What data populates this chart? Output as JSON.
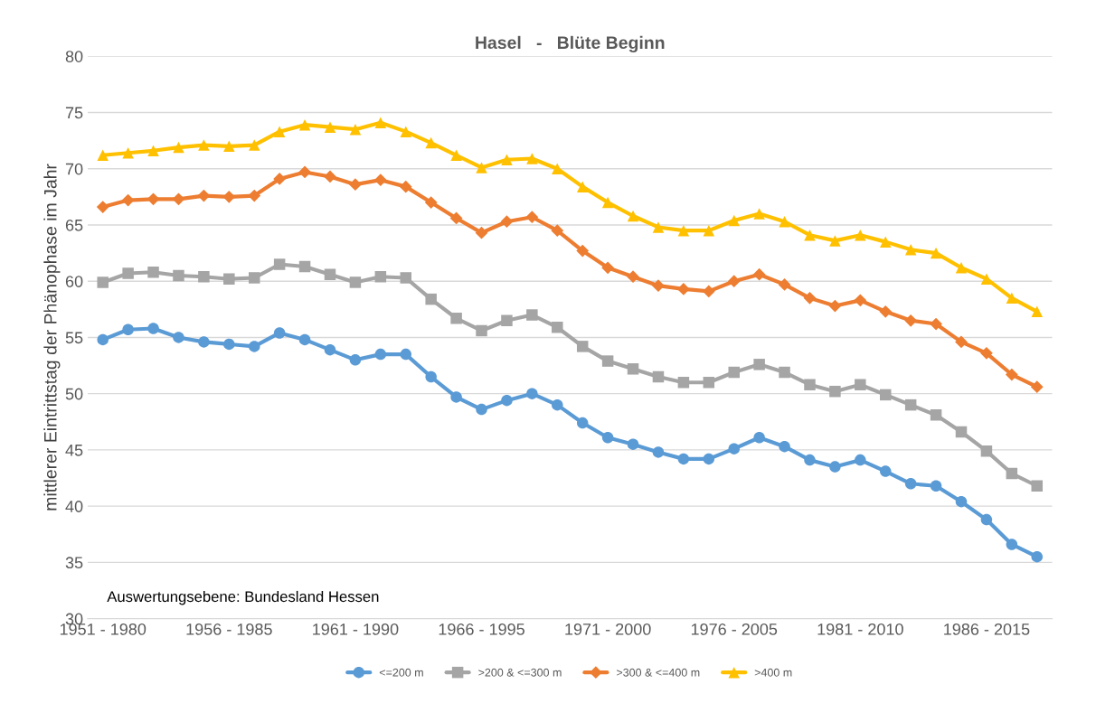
{
  "chart_data": {
    "type": "line",
    "title": "Hasel   -   Blüte Beginn",
    "ylabel": "mittlerer Eintrittstag der Phänophase im Jahr",
    "categories": [
      "1951 - 1980",
      null,
      null,
      null,
      null,
      "1956 - 1985",
      null,
      null,
      null,
      null,
      "1961 - 1990",
      null,
      null,
      null,
      null,
      "1966 - 1995",
      null,
      null,
      null,
      null,
      "1971 - 2000",
      null,
      null,
      null,
      null,
      "1976 - 2005",
      null,
      null,
      null,
      null,
      "1981 - 2010",
      null,
      null,
      null,
      null,
      "1986 - 2015",
      null,
      null
    ],
    "series": [
      {
        "name": "<=200 m",
        "color": "#5b9bd5",
        "marker": "circle",
        "values": [
          54.8,
          55.7,
          55.8,
          55.0,
          54.6,
          54.4,
          54.2,
          55.4,
          54.8,
          53.9,
          53.0,
          53.5,
          53.5,
          51.5,
          49.7,
          48.6,
          49.4,
          50.0,
          49.0,
          47.4,
          46.1,
          45.5,
          44.8,
          44.2,
          44.2,
          45.1,
          46.1,
          45.3,
          44.1,
          43.5,
          44.1,
          43.1,
          42.0,
          41.8,
          40.4,
          38.8,
          36.6,
          35.5
        ]
      },
      {
        "name": ">200 & <=300 m",
        "color": "#a5a5a5",
        "marker": "square",
        "values": [
          59.9,
          60.7,
          60.8,
          60.5,
          60.4,
          60.2,
          60.3,
          61.5,
          61.3,
          60.6,
          59.9,
          60.4,
          60.3,
          58.4,
          56.7,
          55.6,
          56.5,
          57.0,
          55.9,
          54.2,
          52.9,
          52.2,
          51.5,
          51.0,
          51.0,
          51.9,
          52.6,
          51.9,
          50.8,
          50.2,
          50.8,
          49.9,
          49.0,
          48.1,
          46.6,
          44.9,
          42.9,
          41.8
        ]
      },
      {
        "name": ">300 & <=400 m",
        "color": "#ed7d31",
        "marker": "diamond",
        "values": [
          66.6,
          67.2,
          67.3,
          67.3,
          67.6,
          67.5,
          67.6,
          69.1,
          69.7,
          69.3,
          68.6,
          69.0,
          68.4,
          67.0,
          65.6,
          64.3,
          65.3,
          65.7,
          64.5,
          62.7,
          61.2,
          60.4,
          59.6,
          59.3,
          59.1,
          60.0,
          60.6,
          59.7,
          58.5,
          57.8,
          58.3,
          57.3,
          56.5,
          56.2,
          54.6,
          53.6,
          51.7,
          50.6
        ]
      },
      {
        "name": ">400 m",
        "color": "#ffc000",
        "marker": "triangle",
        "values": [
          71.2,
          71.4,
          71.6,
          71.9,
          72.1,
          72.0,
          72.1,
          73.3,
          73.9,
          73.7,
          73.5,
          74.1,
          73.3,
          72.3,
          71.2,
          70.1,
          70.8,
          70.9,
          70.0,
          68.4,
          67.0,
          65.8,
          64.8,
          64.5,
          64.5,
          65.4,
          66.0,
          65.3,
          64.1,
          63.6,
          64.1,
          63.5,
          62.8,
          62.5,
          61.2,
          60.2,
          58.5,
          57.3
        ]
      }
    ],
    "ylim": [
      30,
      80
    ],
    "yticks": [
      30,
      35,
      40,
      45,
      50,
      55,
      60,
      65,
      70,
      75,
      80
    ],
    "grid": "y",
    "legend": "bottom",
    "line_style": "solid",
    "annotations": [
      "Auswertungsebene: Bundesland Hessen"
    ]
  }
}
